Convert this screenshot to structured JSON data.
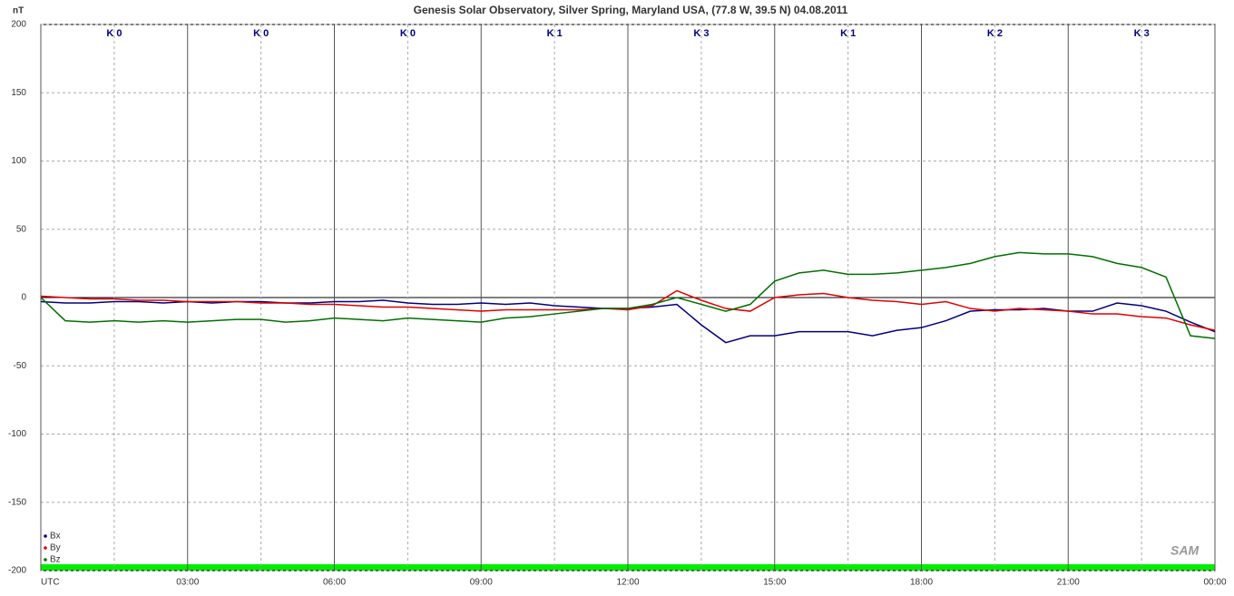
{
  "chart_data": {
    "type": "line",
    "title": "Genesis Solar Observatory, Silver Spring, Maryland USA, (77.8 W, 39.5 N)  04.08.2011",
    "y_label": "nT",
    "logo": "SAM",
    "x": [
      0,
      0.5,
      1,
      1.5,
      2,
      2.5,
      3,
      3.5,
      4,
      4.5,
      5,
      5.5,
      6,
      6.5,
      7,
      7.5,
      8,
      8.5,
      9,
      9.5,
      10,
      10.5,
      11,
      11.5,
      12,
      12.5,
      13,
      13.5,
      14,
      14.5,
      15,
      15.5,
      16,
      16.5,
      17,
      17.5,
      18,
      18.5,
      19,
      19.5,
      20,
      20.5,
      21,
      21.5,
      22,
      22.5,
      23,
      23.5,
      24
    ],
    "series": [
      {
        "name": "Bx",
        "color": "#000080",
        "values": [
          -3,
          -4,
          -4,
          -3,
          -3,
          -4,
          -3,
          -4,
          -3,
          -3,
          -4,
          -4,
          -3,
          -3,
          -2,
          -4,
          -5,
          -5,
          -4,
          -5,
          -4,
          -6,
          -7,
          -8,
          -8,
          -7,
          -5,
          -20,
          -33,
          -28,
          -28,
          -25,
          -25,
          -25,
          -28,
          -24,
          -22,
          -17,
          -10,
          -9,
          -9,
          -8,
          -10,
          -10,
          -4,
          -6,
          -10,
          -18,
          -25
        ]
      },
      {
        "name": "By",
        "color": "#e00000",
        "values": [
          1,
          0,
          -1,
          -1,
          -2,
          -2,
          -3,
          -3,
          -3,
          -4,
          -4,
          -5,
          -5,
          -6,
          -7,
          -7,
          -8,
          -9,
          -10,
          -9,
          -9,
          -9,
          -9,
          -8,
          -9,
          -6,
          5,
          -2,
          -8,
          -10,
          0,
          2,
          3,
          0,
          -2,
          -3,
          -5,
          -3,
          -8,
          -10,
          -8,
          -9,
          -10,
          -12,
          -12,
          -14,
          -15,
          -20,
          -24
        ]
      },
      {
        "name": "Bz",
        "color": "#007000",
        "values": [
          0,
          -17,
          -18,
          -17,
          -18,
          -17,
          -18,
          -17,
          -16,
          -16,
          -18,
          -17,
          -15,
          -16,
          -17,
          -15,
          -16,
          -17,
          -18,
          -15,
          -14,
          -12,
          -10,
          -8,
          -8,
          -5,
          0,
          -5,
          -10,
          -5,
          12,
          18,
          20,
          17,
          17,
          18,
          20,
          22,
          25,
          30,
          33,
          32,
          32,
          30,
          25,
          22,
          15,
          -28,
          -30
        ]
      }
    ],
    "xlim": [
      0,
      24
    ],
    "xticks": [
      {
        "value": 0,
        "label": "UTC"
      },
      {
        "value": 3,
        "label": "03:00"
      },
      {
        "value": 6,
        "label": "06:00"
      },
      {
        "value": 9,
        "label": "09:00"
      },
      {
        "value": 12,
        "label": "12:00"
      },
      {
        "value": 15,
        "label": "15:00"
      },
      {
        "value": 18,
        "label": "18:00"
      },
      {
        "value": 21,
        "label": "21:00"
      },
      {
        "value": 24,
        "label": "00:00"
      }
    ],
    "x_minor_ticks": [
      1.5,
      4.5,
      7.5,
      10.5,
      13.5,
      16.5,
      19.5,
      22.5
    ],
    "ylim": [
      -200,
      200
    ],
    "yticks": [
      200,
      150,
      100,
      50,
      0,
      -50,
      -100,
      -150,
      -200
    ],
    "annotations": [
      {
        "x": 1.5,
        "text": "K 0"
      },
      {
        "x": 4.5,
        "text": "K 0"
      },
      {
        "x": 7.5,
        "text": "K 0"
      },
      {
        "x": 10.5,
        "text": "K 1"
      },
      {
        "x": 13.5,
        "text": "K 3"
      },
      {
        "x": 16.5,
        "text": "K 1"
      },
      {
        "x": 19.5,
        "text": "K 2"
      },
      {
        "x": 22.5,
        "text": "K 3"
      }
    ],
    "grid": true,
    "legend": "lower left"
  }
}
